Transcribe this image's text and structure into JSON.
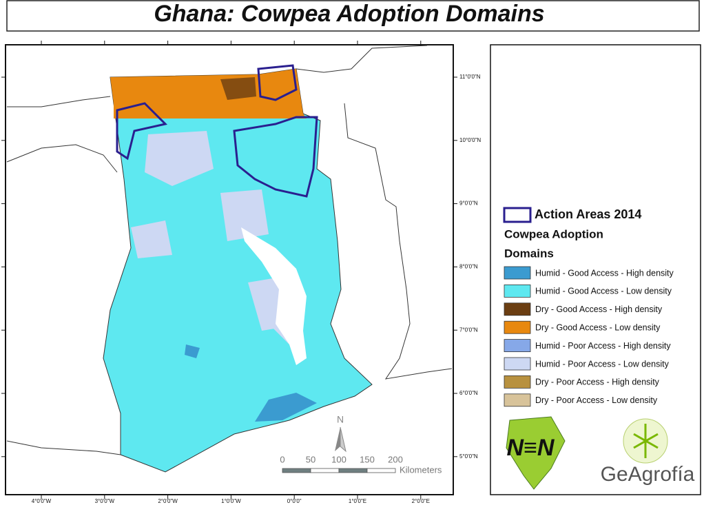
{
  "title": "Ghana: Cowpea Adoption Domains",
  "latitude_labels": [
    "11°0'0\"N",
    "10°0'0\"N",
    "9°0'0\"N",
    "8°0'0\"N",
    "7°0'0\"N",
    "6°0'0\"N",
    "5°0'0\"N"
  ],
  "longitude_labels": [
    "4°0'0\"W",
    "3°0'0\"W",
    "2°0'0\"W",
    "1°0'0\"W",
    "0°0'0\"",
    "1°0'0\"E",
    "2°0'0\"E"
  ],
  "scale_bar": {
    "labels": [
      "0",
      "50",
      "100",
      "150",
      "200"
    ],
    "unit": "Kilometers"
  },
  "north_arrow": "N",
  "legend": {
    "action_areas": "Action Areas 2014",
    "heading_lines": [
      "Cowpea Adoption",
      "Domains"
    ],
    "items": [
      {
        "label": "Humid - Good Access - High density",
        "color": "#3b9bd0"
      },
      {
        "label": "Humid - Good Access - Low density",
        "color": "#5ee8f0"
      },
      {
        "label": "Dry - Good Access - High density",
        "color": "#6b3e12"
      },
      {
        "label": "Dry - Good Access - Low density",
        "color": "#e8880f"
      },
      {
        "label": "Humid - Poor Access - High density",
        "color": "#86a8e8"
      },
      {
        "label": "Humid - Poor Access - Low density",
        "color": "#cdd8f3"
      },
      {
        "label": "Dry - Poor Access - High density",
        "color": "#b8913f"
      },
      {
        "label": "Dry - Poor Access - Low density",
        "color": "#d8c39a"
      }
    ]
  },
  "logos": {
    "n2africa": "N≡N",
    "geagrofia": "GeAgrofía"
  }
}
